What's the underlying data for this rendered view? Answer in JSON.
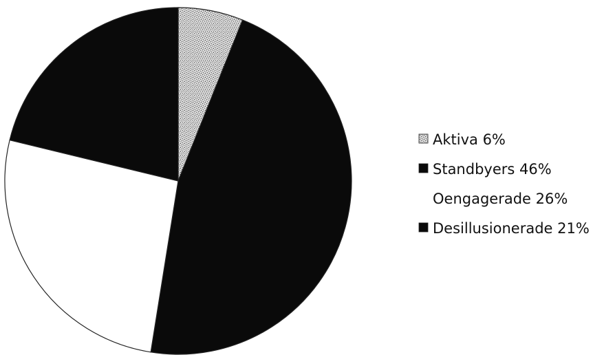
{
  "chart_data": {
    "type": "pie",
    "title": "",
    "categories": [
      "Aktiva",
      "Standbyers",
      "Oengagerade",
      "Desillusionerade"
    ],
    "values": [
      6,
      46,
      26,
      21
    ],
    "legend_labels": [
      "Aktiva 6%",
      "Standbyers 46%",
      "Oengagerade 26%",
      "Desillusionerade 21%"
    ],
    "legend_position": "right",
    "colors": [
      "#cfcfcf",
      "#0a0a0a",
      "#ffffff",
      "#0a0a0a"
    ],
    "start_angle": "top, clockwise"
  }
}
